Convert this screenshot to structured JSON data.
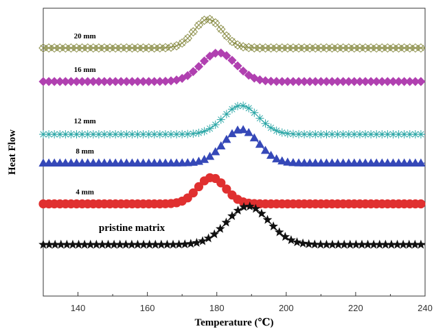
{
  "chart_data": {
    "type": "line",
    "title": "",
    "xlabel": "Temperature (℃)",
    "ylabel": "Heat Flow",
    "xlim": [
      130,
      240
    ],
    "xticks": [
      140,
      160,
      180,
      200,
      220,
      240
    ],
    "grid": false,
    "legend": "none",
    "series": [
      {
        "name": "20 mm",
        "marker": "cross-diamond",
        "color": "#8c8f4a",
        "baseline": 1.0,
        "peak_x": 177.5,
        "peak_height": 0.12,
        "peak_halfwidth": 4,
        "x": [
          130,
          170,
          172,
          174,
          176,
          177.5,
          179,
          181,
          183,
          186,
          190,
          240
        ],
        "y": [
          1.0,
          1.0,
          1.02,
          1.05,
          1.09,
          1.12,
          1.09,
          1.05,
          1.02,
          1.0,
          1.0,
          1.0
        ]
      },
      {
        "name": "16 mm",
        "marker": "diamond",
        "color": "#b040b0",
        "baseline": 0.86,
        "peak_x": 180.5,
        "peak_height": 0.12,
        "peak_halfwidth": 5,
        "x": [
          130,
          172,
          175,
          178,
          180.5,
          183,
          186,
          189,
          240
        ],
        "y": [
          0.86,
          0.86,
          0.89,
          0.95,
          0.98,
          0.95,
          0.89,
          0.86,
          0.86
        ]
      },
      {
        "name": "12 mm",
        "marker": "asterisk",
        "color": "#2aa6a6",
        "baseline": 0.64,
        "peak_x": 187,
        "peak_height": 0.12,
        "peak_halfwidth": 5,
        "x": [
          130,
          178,
          181,
          184,
          187,
          190,
          193,
          196,
          240
        ],
        "y": [
          0.64,
          0.64,
          0.67,
          0.72,
          0.76,
          0.72,
          0.67,
          0.64,
          0.64
        ]
      },
      {
        "name": "8 mm",
        "marker": "triangle",
        "color": "#3548b8",
        "baseline": 0.52,
        "peak_x": 187,
        "peak_height": 0.14,
        "peak_halfwidth": 5,
        "x": [
          130,
          178,
          181,
          184,
          187,
          189,
          190.5,
          192,
          240
        ],
        "y": [
          0.52,
          0.52,
          0.56,
          0.62,
          0.66,
          0.62,
          0.56,
          0.52,
          0.52
        ]
      },
      {
        "name": "4 mm",
        "marker": "circle",
        "color": "#e03030",
        "baseline": 0.35,
        "peak_x": 178.5,
        "peak_height": 0.11,
        "peak_halfwidth": 4,
        "x": [
          130,
          170,
          173,
          176,
          178.5,
          181,
          183,
          185,
          240
        ],
        "y": [
          0.35,
          0.35,
          0.38,
          0.43,
          0.46,
          0.43,
          0.38,
          0.35,
          0.35
        ]
      },
      {
        "name": "pristine matrix",
        "marker": "star",
        "color": "#111111",
        "baseline": 0.18,
        "peak_x": 189,
        "peak_height": 0.16,
        "peak_halfwidth": 6,
        "x": [
          130,
          176,
          180,
          184,
          187,
          189,
          191,
          193,
          195,
          240
        ],
        "y": [
          0.18,
          0.18,
          0.2,
          0.25,
          0.31,
          0.34,
          0.3,
          0.22,
          0.18,
          0.18
        ]
      }
    ]
  }
}
